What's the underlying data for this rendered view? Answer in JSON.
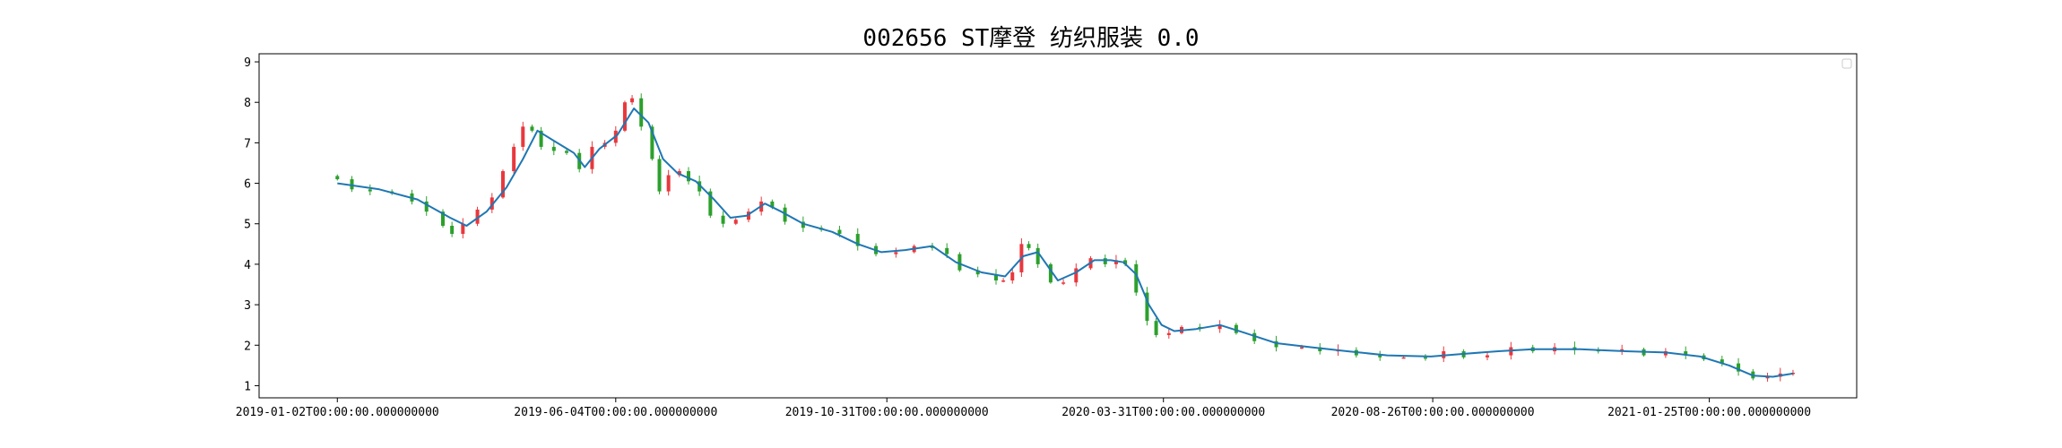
{
  "title": "002656 ST摩登 纺织服装 0.0",
  "colors": {
    "up": "#e8383d",
    "down": "#2ca02c",
    "ma": "#1f77b4",
    "axis": "#000000"
  },
  "chart_data": {
    "type": "candlestick",
    "title": "002656 ST摩登 纺织服装 0.0",
    "xlabel": "",
    "ylabel": "",
    "ylim": [
      0.7,
      9.2
    ],
    "yticks": [
      1,
      2,
      3,
      4,
      5,
      6,
      7,
      8,
      9
    ],
    "xlim": [
      "2018-11-20",
      "2021-04-16"
    ],
    "xtick_dates": [
      "2019-01-02",
      "2019-06-04",
      "2019-10-31",
      "2020-03-31",
      "2020-08-26",
      "2021-01-25"
    ],
    "xtick_labels": [
      "2019-01-02T00:00:00.000000000",
      "2019-06-04T00:00:00.000000000",
      "2019-10-31T00:00:00.000000000",
      "2020-03-31T00:00:00.000000000",
      "2020-08-26T00:00:00.000000000",
      "2021-01-25T00:00:00.000000000"
    ],
    "legend": {
      "placement": "top-right",
      "entries": []
    },
    "grid": false,
    "series": [
      {
        "kind": "close",
        "points": [
          [
            "2019-01-02",
            6.1
          ],
          [
            "2019-01-10",
            5.85
          ],
          [
            "2019-01-20",
            5.8
          ],
          [
            "2019-02-01",
            5.75
          ],
          [
            "2019-02-12",
            5.55
          ],
          [
            "2019-02-20",
            5.3
          ],
          [
            "2019-03-01",
            4.95
          ],
          [
            "2019-03-06",
            4.75
          ],
          [
            "2019-03-12",
            5.0
          ],
          [
            "2019-03-20",
            5.35
          ],
          [
            "2019-03-28",
            5.65
          ],
          [
            "2019-04-03",
            6.3
          ],
          [
            "2019-04-09",
            6.9
          ],
          [
            "2019-04-14",
            7.4
          ],
          [
            "2019-04-19",
            7.3
          ],
          [
            "2019-04-24",
            6.9
          ],
          [
            "2019-05-01",
            6.8
          ],
          [
            "2019-05-08",
            6.75
          ],
          [
            "2019-05-15",
            6.35
          ],
          [
            "2019-05-22",
            6.9
          ],
          [
            "2019-05-29",
            7.0
          ],
          [
            "2019-06-04",
            7.3
          ],
          [
            "2019-06-09",
            8.0
          ],
          [
            "2019-06-13",
            8.1
          ],
          [
            "2019-06-18",
            7.4
          ],
          [
            "2019-06-24",
            6.6
          ],
          [
            "2019-06-28",
            5.8
          ],
          [
            "2019-07-03",
            6.2
          ],
          [
            "2019-07-09",
            6.3
          ],
          [
            "2019-07-14",
            6.05
          ],
          [
            "2019-07-20",
            5.8
          ],
          [
            "2019-07-26",
            5.2
          ],
          [
            "2019-08-02",
            5.0
          ],
          [
            "2019-08-09",
            5.1
          ],
          [
            "2019-08-16",
            5.3
          ],
          [
            "2019-08-23",
            5.55
          ],
          [
            "2019-08-29",
            5.4
          ],
          [
            "2019-09-05",
            5.05
          ],
          [
            "2019-09-15",
            4.9
          ],
          [
            "2019-09-25",
            4.85
          ],
          [
            "2019-10-05",
            4.75
          ],
          [
            "2019-10-15",
            4.45
          ],
          [
            "2019-10-25",
            4.25
          ],
          [
            "2019-11-05",
            4.3
          ],
          [
            "2019-11-15",
            4.45
          ],
          [
            "2019-11-25",
            4.4
          ],
          [
            "2019-12-03",
            4.25
          ],
          [
            "2019-12-10",
            3.85
          ],
          [
            "2019-12-20",
            3.75
          ],
          [
            "2019-12-30",
            3.6
          ],
          [
            "2020-01-03",
            3.6
          ],
          [
            "2020-01-08",
            3.8
          ],
          [
            "2020-01-13",
            4.5
          ],
          [
            "2020-01-17",
            4.4
          ],
          [
            "2020-01-22",
            4.0
          ],
          [
            "2020-01-29",
            3.55
          ],
          [
            "2020-02-05",
            3.55
          ],
          [
            "2020-02-12",
            3.9
          ],
          [
            "2020-02-20",
            4.15
          ],
          [
            "2020-02-28",
            4.0
          ],
          [
            "2020-03-05",
            4.1
          ],
          [
            "2020-03-10",
            4.0
          ],
          [
            "2020-03-16",
            3.3
          ],
          [
            "2020-03-22",
            2.6
          ],
          [
            "2020-03-27",
            2.25
          ],
          [
            "2020-04-03",
            2.3
          ],
          [
            "2020-04-10",
            2.45
          ],
          [
            "2020-04-20",
            2.4
          ],
          [
            "2020-05-01",
            2.5
          ],
          [
            "2020-05-10",
            2.3
          ],
          [
            "2020-05-20",
            2.1
          ],
          [
            "2020-06-01",
            1.95
          ],
          [
            "2020-06-15",
            1.95
          ],
          [
            "2020-06-25",
            1.85
          ],
          [
            "2020-07-05",
            1.88
          ],
          [
            "2020-07-15",
            1.75
          ],
          [
            "2020-07-28",
            1.7
          ],
          [
            "2020-08-10",
            1.7
          ],
          [
            "2020-08-22",
            1.68
          ],
          [
            "2020-09-01",
            1.85
          ],
          [
            "2020-09-12",
            1.7
          ],
          [
            "2020-09-25",
            1.75
          ],
          [
            "2020-10-08",
            1.95
          ],
          [
            "2020-10-20",
            1.85
          ],
          [
            "2020-11-01",
            1.95
          ],
          [
            "2020-11-12",
            1.88
          ],
          [
            "2020-11-25",
            1.85
          ],
          [
            "2020-12-08",
            1.9
          ],
          [
            "2020-12-20",
            1.75
          ],
          [
            "2021-01-01",
            1.85
          ],
          [
            "2021-01-12",
            1.75
          ],
          [
            "2021-01-22",
            1.65
          ],
          [
            "2021-02-01",
            1.55
          ],
          [
            "2021-02-10",
            1.35
          ],
          [
            "2021-02-18",
            1.18
          ],
          [
            "2021-02-26",
            1.22
          ],
          [
            "2021-03-05",
            1.3
          ],
          [
            "2021-03-12",
            1.32
          ]
        ]
      },
      {
        "kind": "moving-average",
        "points": [
          [
            "2019-01-02",
            6.0
          ],
          [
            "2019-01-25",
            5.85
          ],
          [
            "2019-02-15",
            5.6
          ],
          [
            "2019-03-05",
            5.15
          ],
          [
            "2019-03-14",
            4.95
          ],
          [
            "2019-03-25",
            5.3
          ],
          [
            "2019-04-05",
            5.9
          ],
          [
            "2019-04-14",
            6.6
          ],
          [
            "2019-04-22",
            7.3
          ],
          [
            "2019-05-01",
            7.05
          ],
          [
            "2019-05-12",
            6.75
          ],
          [
            "2019-05-18",
            6.4
          ],
          [
            "2019-05-26",
            6.85
          ],
          [
            "2019-06-05",
            7.2
          ],
          [
            "2019-06-14",
            7.85
          ],
          [
            "2019-06-22",
            7.5
          ],
          [
            "2019-06-30",
            6.6
          ],
          [
            "2019-07-08",
            6.25
          ],
          [
            "2019-07-18",
            6.05
          ],
          [
            "2019-07-28",
            5.6
          ],
          [
            "2019-08-06",
            5.15
          ],
          [
            "2019-08-15",
            5.2
          ],
          [
            "2019-08-25",
            5.5
          ],
          [
            "2019-09-03",
            5.3
          ],
          [
            "2019-09-15",
            5.0
          ],
          [
            "2019-10-01",
            4.8
          ],
          [
            "2019-10-15",
            4.5
          ],
          [
            "2019-10-28",
            4.3
          ],
          [
            "2019-11-10",
            4.35
          ],
          [
            "2019-11-25",
            4.45
          ],
          [
            "2019-12-08",
            4.05
          ],
          [
            "2019-12-22",
            3.8
          ],
          [
            "2020-01-04",
            3.7
          ],
          [
            "2020-01-14",
            4.2
          ],
          [
            "2020-01-22",
            4.3
          ],
          [
            "2020-02-02",
            3.6
          ],
          [
            "2020-02-12",
            3.8
          ],
          [
            "2020-02-22",
            4.1
          ],
          [
            "2020-03-02",
            4.1
          ],
          [
            "2020-03-09",
            4.05
          ],
          [
            "2020-03-16",
            3.75
          ],
          [
            "2020-03-23",
            3.0
          ],
          [
            "2020-03-30",
            2.5
          ],
          [
            "2020-04-06",
            2.35
          ],
          [
            "2020-04-18",
            2.4
          ],
          [
            "2020-05-01",
            2.5
          ],
          [
            "2020-05-15",
            2.3
          ],
          [
            "2020-06-01",
            2.05
          ],
          [
            "2020-06-20",
            1.95
          ],
          [
            "2020-07-10",
            1.85
          ],
          [
            "2020-08-01",
            1.75
          ],
          [
            "2020-08-25",
            1.72
          ],
          [
            "2020-09-10",
            1.78
          ],
          [
            "2020-10-01",
            1.85
          ],
          [
            "2020-10-20",
            1.9
          ],
          [
            "2020-11-15",
            1.9
          ],
          [
            "2020-12-10",
            1.85
          ],
          [
            "2021-01-01",
            1.82
          ],
          [
            "2021-01-20",
            1.72
          ],
          [
            "2021-02-05",
            1.5
          ],
          [
            "2021-02-18",
            1.25
          ],
          [
            "2021-03-01",
            1.22
          ],
          [
            "2021-03-12",
            1.3
          ]
        ]
      }
    ]
  }
}
